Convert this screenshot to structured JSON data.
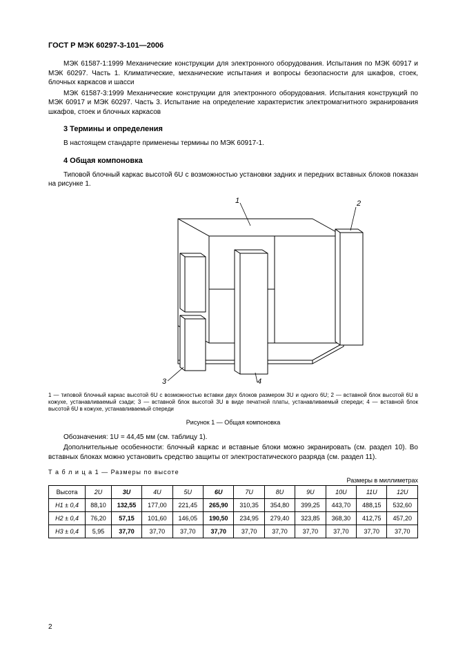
{
  "header": "ГОСТ Р МЭК 60297-3-101—2006",
  "intro_paragraphs": [
    "МЭК 61587-1:1999 Механические конструкции для электронного оборудования. Испытания по МЭК 60917 и МЭК 60297. Часть 1. Климатические, механические испытания и вопросы безопасности для шкафов, стоек, блочных каркасов и шасси",
    "МЭК 61587-3:1999 Механические конструкции для электронного оборудования. Испытания кон­струкций по МЭК 60917 и МЭК 60297. Часть 3. Испытание на определение характеристик электромаг­нитного экранирования шкафов, стоек и блочных каркасов"
  ],
  "section3": {
    "heading": "3  Термины и определения",
    "body": "В настоящем стандарте применены термины по МЭК 60917-1."
  },
  "section4": {
    "heading": "4  Общая компоновка",
    "body": "Типовой блочный каркас высотой 6U с возможностью установки задних и передних вставных бло­ков показан на рисунке 1."
  },
  "figure": {
    "callouts": {
      "one": "1",
      "two": "2",
      "three": "3",
      "four": "4"
    },
    "caption_small": "1 — типовой блочный каркас высотой 6U с возможностью вставки двух блоков размером 3U и одного 6U; 2 — вставной блок высо­той 6U в кожухе, устанавливаемый сзади; 3 — вставной блок высотой 3U в виде печатной платы, устанавливаемый спереди; 4 — вставной блок высотой 6U в кожухе, устанавливаемый спереди",
    "title": "Рисунок 1 — Общая компоновка"
  },
  "post_fig": [
    "Обозначения: 1U = 44,45 мм (см. таблицу 1).",
    "Дополнительные особенности: блочный каркас и вставные блоки можно экранировать (см. раз­дел 10). Во вставных блоках можно установить средство защиты от электростатического разряда (см. раздел 11)."
  ],
  "table": {
    "label": "Т а б л и ц а   1 — Размеры по высоте",
    "units": "Размеры в миллиметрах",
    "head": [
      "Высота",
      "2U",
      "3U",
      "4U",
      "5U",
      "6U",
      "7U",
      "8U",
      "9U",
      "10U",
      "11U",
      "12U"
    ],
    "rows": [
      {
        "label": "H1 ± 0,4",
        "cells": [
          "88,10",
          "132,55",
          "177,00",
          "221,45",
          "265,90",
          "310,35",
          "354,80",
          "399,25",
          "443,70",
          "488,15",
          "532,60"
        ]
      },
      {
        "label": "H2 ± 0,4",
        "cells": [
          "76,20",
          "57,15",
          "101,60",
          "146,05",
          "190,50",
          "234,95",
          "279,40",
          "323,85",
          "368,30",
          "412,75",
          "457,20"
        ]
      },
      {
        "label": "H3 ± 0,4",
        "cells": [
          "5,95",
          "37,70",
          "37,70",
          "37,70",
          "37,70",
          "37,70",
          "37,70",
          "37,70",
          "37,70",
          "37,70",
          "37,70"
        ]
      }
    ],
    "boldCols": [
      2,
      5
    ]
  },
  "pageNumber": "2"
}
